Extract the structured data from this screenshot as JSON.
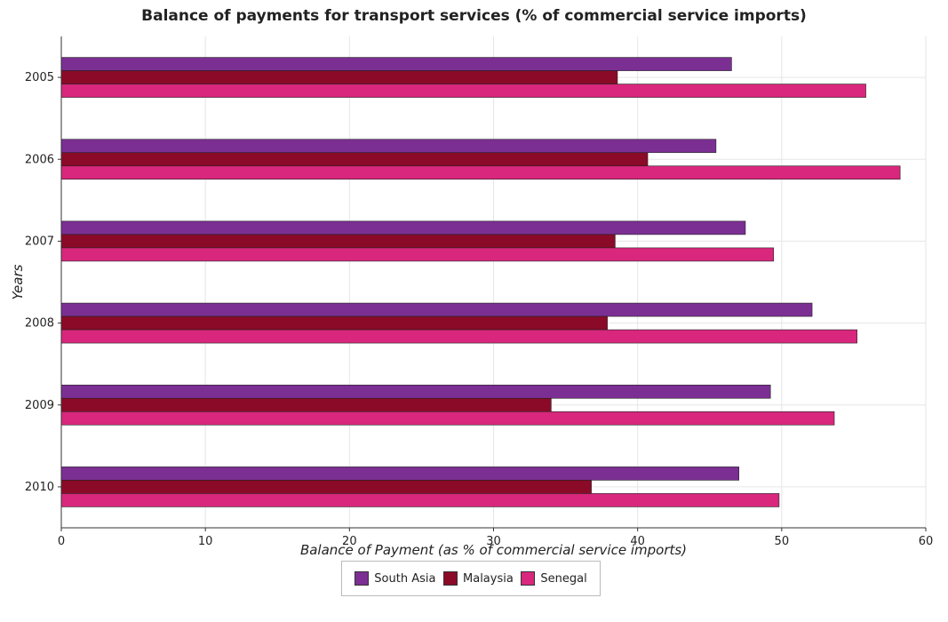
{
  "title": "Balance of payments for transport services (% of commercial service imports)",
  "chart_data": {
    "type": "bar",
    "orientation": "horizontal",
    "xlabel": "Balance of Payment (as % of commercial service imports)",
    "ylabel": "Years",
    "xlim": [
      0,
      60
    ],
    "xticks": [
      0,
      10,
      20,
      30,
      40,
      50,
      60
    ],
    "grid": true,
    "legend_position": "bottom-center",
    "categories": [
      "2005",
      "2006",
      "2007",
      "2008",
      "2009",
      "2010"
    ],
    "series": [
      {
        "name": "South Asia",
        "color": "#7b2f93",
        "values": [
          46.52,
          45.44,
          47.48,
          52.11,
          49.22,
          47.03
        ]
      },
      {
        "name": "Malaysia",
        "color": "#8b0a27",
        "values": [
          38.6,
          40.7,
          38.44,
          37.9,
          34.0,
          36.79
        ]
      },
      {
        "name": "Senegal",
        "color": "#d8277c",
        "values": [
          55.84,
          58.22,
          49.44,
          55.23,
          53.65,
          49.82
        ]
      }
    ]
  }
}
